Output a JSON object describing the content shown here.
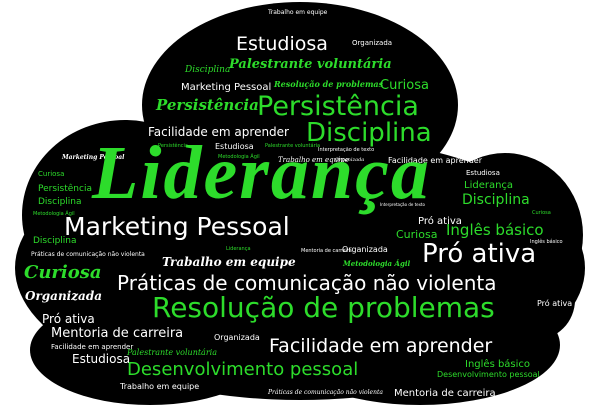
{
  "colors": {
    "background": "#ffffff",
    "cloud": "#000000",
    "accent": "#2ddc2b",
    "text": "#ffffff"
  },
  "words": {
    "trabalho_top": "Trabalho em equipe",
    "estudiosa_top": "Estudiosa",
    "organizada_top": "Organizada",
    "disciplina_small": "Disciplina",
    "palestrante_top": "Palestrante voluntária",
    "marketing_small": "Marketing Pessoal",
    "resolucao_small": "Resolução de problemas",
    "curiosa_top": "Curiosa",
    "persistencia_it": "Persistência",
    "persistencia_big": "Persistência",
    "disciplina_big": "Disciplina",
    "facilidade_mid": "Facilidade em aprender",
    "estudiosa_mid": "Estudiosa",
    "persistencia_tiny": "Persistência",
    "palestrante_tiny": "Palestrante voluntária",
    "interpretacao_tiny": "Interpretação de texto",
    "marketing_left": "Marketing Pessoal",
    "metodologia_tiny": "Metodologia Ágil",
    "trabalho_mid": "Trabalho em equipe",
    "organizada_tiny": "Organizada",
    "facilidade_right": "Facilidade em aprender",
    "lideranca": "Liderança",
    "curiosa_left": "Curiosa",
    "persistencia_left": "Persistência",
    "lideranca_small": "Liderança",
    "estudiosa_right": "Estudiosa",
    "disciplina_left": "Disciplina",
    "disciplina_right": "Disciplina",
    "metodologia_left": "Metodologia Ágil",
    "interpretacao_mid": "Interpretação de texto",
    "curiosa_tiny": "Curiosa",
    "marketing_big": "Marketing Pessoal",
    "pro_ativa_small": "Pró ativa",
    "ingles_basico": "Inglês básico",
    "disciplina_left2": "Disciplina",
    "lideranca_tiny": "Liderança",
    "mentoria_tiny": "Mentoria de carreira",
    "organizada_mid": "Organizada",
    "curiosa_mid": "Curiosa",
    "ingles_tiny": "Inglês básico",
    "praticas_tiny": "Práticas de comunicação não violenta",
    "trabalho_big": "Trabalho em equipe",
    "metodologia_agil": "Metodologia Ágil",
    "pro_ativa_big": "Pró ativa",
    "curiosa_big": "Curiosa",
    "praticas_big": "Práticas de comunicação não violenta",
    "organizada_big": "Organizada",
    "resolucao_big": "Resolução de problemas",
    "pro_ativa_left": "Pró ativa",
    "pro_ativa_right": "Pró ativa",
    "mentoria_mid": "Mentoria de carreira",
    "facilidade_left": "Facilidade em aprender",
    "organizada_low": "Organizada",
    "facilidade_big": "Facilidade em aprender",
    "estudiosa_low": "Estudiosa",
    "palestrante_low": "Palestrante voluntária",
    "ingles_low": "Inglês básico",
    "desenvolvimento_big": "Desenvolvimento pessoal",
    "desenvolvimento_small": "Desenvolvimento pessoal",
    "trabalho_low": "Trabalho em equipe",
    "praticas_low": "Práticas de comunicação não violenta",
    "mentoria_low": "Mentoria de carreira"
  }
}
